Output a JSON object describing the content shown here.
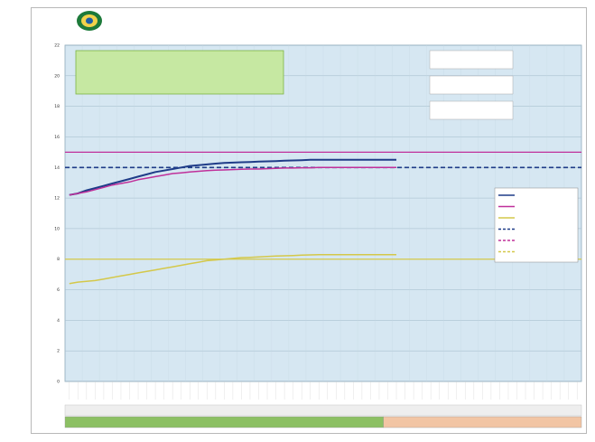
{
  "chart_data": {
    "type": "line",
    "title": "",
    "subtitle": "",
    "footer": "",
    "ylabel": "",
    "ylim": [
      0,
      22
    ],
    "y_ticks": [
      0,
      2,
      4,
      6,
      8,
      10,
      12,
      14,
      16,
      18,
      20,
      22
    ],
    "x_count": 60,
    "grid": true,
    "legend_position": "right",
    "colors": {
      "plot_bg": "#d6e7f2",
      "grid": "#9fb8c8",
      "note_green_bg": "#c6e8a2",
      "note_green_border": "#7cb342",
      "month_green": "#8cc063",
      "month_orange": "#f2c5a4",
      "month_row_bg": "#eeeeee"
    },
    "annotations": {
      "center_title": "",
      "center_lines": [
        "",
        "",
        ""
      ]
    },
    "notes": [
      {
        "text": "",
        "color": "#1f3c88"
      },
      {
        "text": "",
        "color": "#c9a227"
      },
      {
        "text": "",
        "color": "#b02ab0"
      }
    ],
    "months": [
      {
        "label": "",
        "from": 0,
        "to": 37,
        "color": "#8cc063"
      },
      {
        "label": "",
        "from": 37,
        "to": 60,
        "color": "#f2c5a4"
      }
    ],
    "reference_lines": [
      {
        "name": "",
        "value": 14.0,
        "color": "#1f3c88",
        "dash": true
      },
      {
        "name": "",
        "value": 15.0,
        "color": "#c0309a",
        "dash": false
      },
      {
        "name": "",
        "value": 8.0,
        "color": "#d4c84a",
        "dash": false
      }
    ],
    "series": [
      {
        "name": "",
        "color": "#1f3c88",
        "width": 2,
        "values": [
          12.2,
          12.3,
          12.5,
          12.65,
          12.8,
          12.95,
          13.1,
          13.25,
          13.4,
          13.55,
          13.7,
          13.8,
          13.9,
          14.0,
          14.1,
          14.15,
          14.2,
          14.25,
          14.3,
          14.32,
          14.34,
          14.36,
          14.38,
          14.4,
          14.42,
          14.44,
          14.46,
          14.48,
          14.5,
          14.5,
          14.5,
          14.5,
          14.5,
          14.5,
          14.5,
          14.5,
          14.5,
          14.5,
          14.5
        ]
      },
      {
        "name": "",
        "color": "#c0309a",
        "width": 1.5,
        "values": [
          12.2,
          12.3,
          12.4,
          12.55,
          12.7,
          12.85,
          12.95,
          13.05,
          13.2,
          13.3,
          13.4,
          13.5,
          13.6,
          13.65,
          13.7,
          13.75,
          13.8,
          13.82,
          13.84,
          13.86,
          13.88,
          13.9,
          13.9,
          13.92,
          13.94,
          13.96,
          13.96,
          13.98,
          13.98,
          14.0,
          14.0,
          14.0,
          14.0,
          14.0,
          14.0,
          14.0,
          14.0,
          14.0,
          14.0
        ]
      },
      {
        "name": "",
        "color": "#d4c84a",
        "width": 1.5,
        "values": [
          6.4,
          6.5,
          6.55,
          6.6,
          6.7,
          6.8,
          6.9,
          7.0,
          7.1,
          7.2,
          7.3,
          7.4,
          7.5,
          7.6,
          7.7,
          7.8,
          7.9,
          7.95,
          8.0,
          8.05,
          8.1,
          8.12,
          8.15,
          8.18,
          8.2,
          8.22,
          8.24,
          8.26,
          8.28,
          8.3,
          8.3,
          8.3,
          8.3,
          8.3,
          8.3,
          8.3,
          8.3,
          8.3,
          8.3
        ]
      }
    ],
    "legend": [
      {
        "label": "",
        "color": "#1f3c88",
        "dash": false
      },
      {
        "label": "",
        "color": "#c0309a",
        "dash": false
      },
      {
        "label": "",
        "color": "#d4c84a",
        "dash": false
      },
      {
        "label": "",
        "color": "#1f3c88",
        "dash": true
      },
      {
        "label": "",
        "color": "#c0309a",
        "dash": true
      },
      {
        "label": "",
        "color": "#d4c84a",
        "dash": true
      }
    ]
  }
}
